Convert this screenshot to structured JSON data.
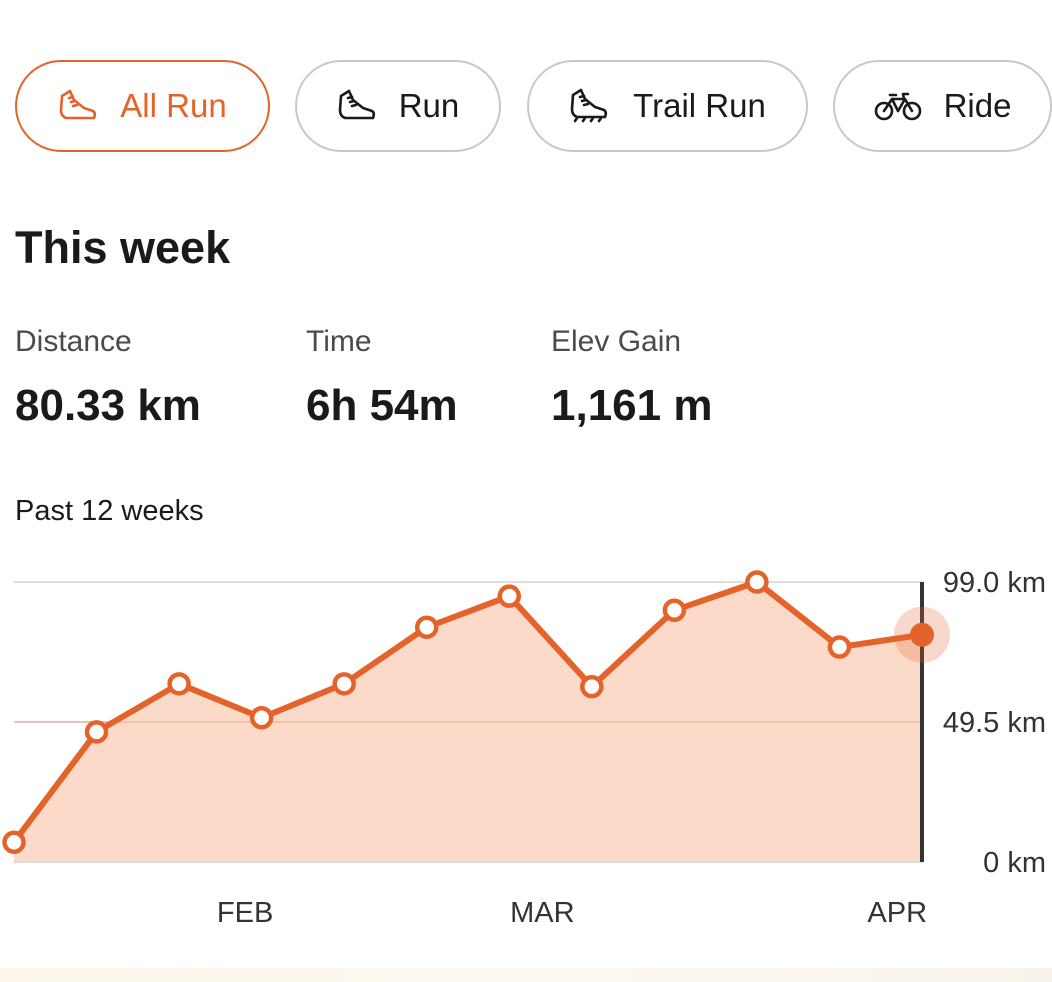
{
  "filters": [
    {
      "label": "All Run",
      "icon": "shoe-icon",
      "active": true
    },
    {
      "label": "Run",
      "icon": "shoe-icon",
      "active": false
    },
    {
      "label": "Trail Run",
      "icon": "trail-shoe-icon",
      "active": false
    },
    {
      "label": "Ride",
      "icon": "bike-icon",
      "active": false
    }
  ],
  "summary": {
    "title": "This week",
    "stats": [
      {
        "label": "Distance",
        "value": "80.33 km"
      },
      {
        "label": "Time",
        "value": "6h 54m"
      },
      {
        "label": "Elev Gain",
        "value": "1,161 m"
      }
    ]
  },
  "chart_section": {
    "subtitle": "Past 12 weeks"
  },
  "colors": {
    "accent": "#e4632a",
    "area_fill": "#fbd3bf",
    "grid": "#dddddd"
  },
  "chart_data": {
    "type": "area",
    "x": [
      1,
      2,
      3,
      4,
      5,
      6,
      7,
      8,
      9,
      10,
      11,
      12
    ],
    "values": [
      7,
      46,
      63,
      51,
      63,
      83,
      94,
      62,
      89,
      99,
      76,
      80.33
    ],
    "ylim": [
      0,
      99
    ],
    "y_tick_labels": [
      "0 km",
      "49.5 km",
      "99.0 km"
    ],
    "month_labels": [
      {
        "label": "FEB",
        "at": 3.8
      },
      {
        "label": "MAR",
        "at": 7.4
      },
      {
        "label": "APR",
        "at": 11.7
      }
    ],
    "highlight_index": 11
  }
}
